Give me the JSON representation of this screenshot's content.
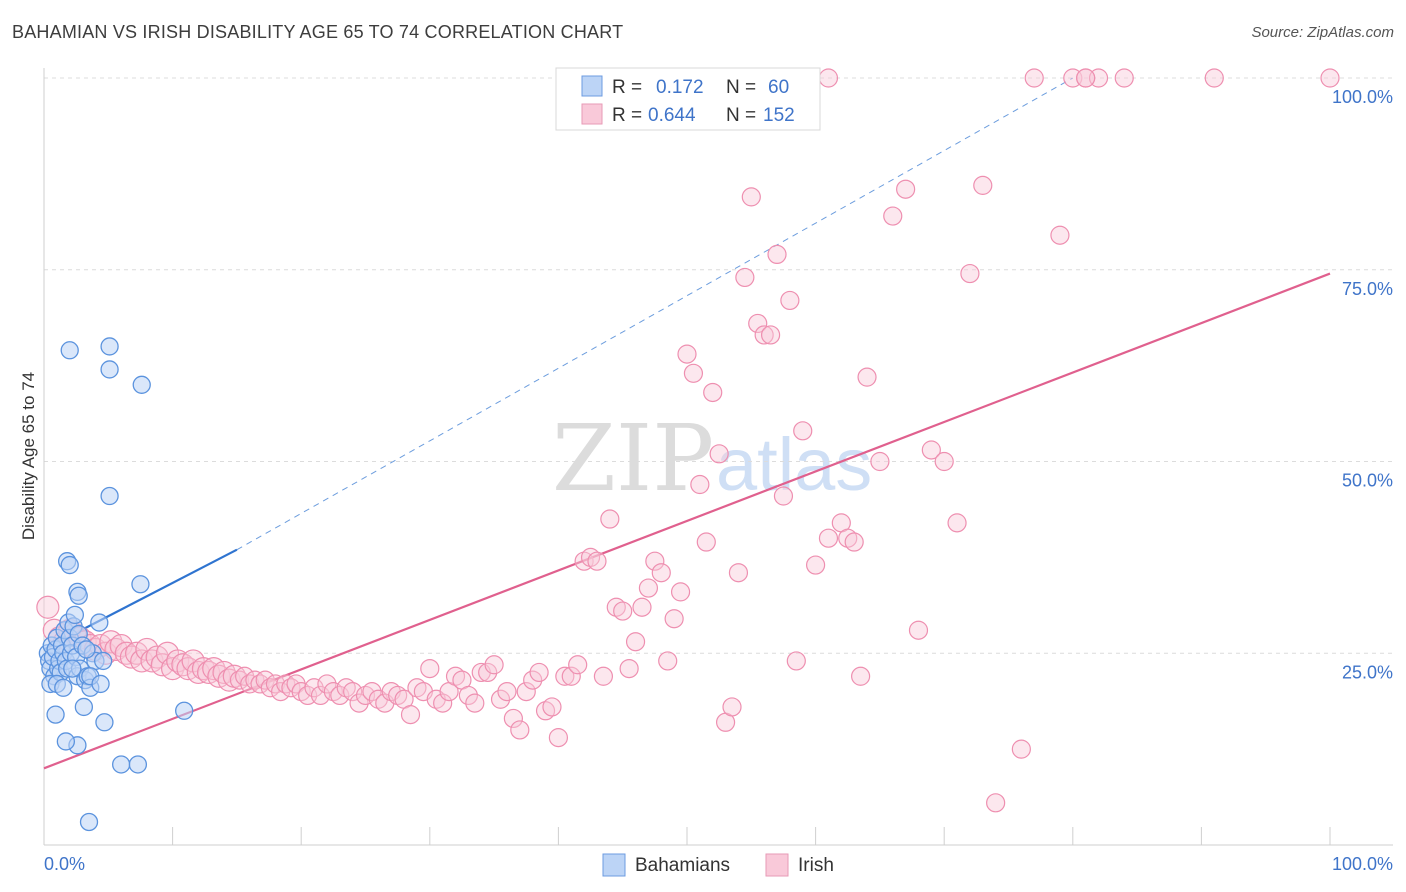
{
  "title": "BAHAMIAN VS IRISH DISABILITY AGE 65 TO 74 CORRELATION CHART",
  "source": "Source: ZipAtlas.com",
  "watermark": {
    "zip": "ZIP",
    "atlas": "atlas"
  },
  "colors": {
    "bahamian": "#5b93de",
    "irish": "#ee8fb0",
    "bahamian_line": "#2f74d0",
    "irish_line": "#e0608e",
    "tick_label": "#3f74c9"
  },
  "legend": {
    "rows": [
      {
        "r_label": "R =",
        "r_value": "0.172",
        "n_label": "N =",
        "n_value": "60"
      },
      {
        "r_label": "R =",
        "r_value": "0.644",
        "n_label": "N =",
        "n_value": "152"
      }
    ]
  },
  "bottom_legend": [
    "Bahamians",
    "Irish"
  ],
  "chart_data": {
    "type": "scatter",
    "title": "BAHAMIAN VS IRISH DISABILITY AGE 65 TO 74 CORRELATION CHART",
    "xlabel": "",
    "ylabel": "Disability Age 65 to 74",
    "xlim": [
      0,
      100
    ],
    "ylim": [
      0,
      100
    ],
    "x_tick_labels": [
      "0.0%",
      "100.0%"
    ],
    "y_ticks": [
      25,
      50,
      75,
      100
    ],
    "y_tick_labels": [
      "25.0%",
      "50.0%",
      "75.0%",
      "100.0%"
    ],
    "grid": "horizontal dashed",
    "legend_position": "top-center",
    "series": [
      {
        "name": "Bahamians",
        "R": 0.172,
        "N": 60,
        "trend": {
          "x0": 0,
          "y0": 25.5,
          "x1": 15,
          "y1": 38.5,
          "extended_to": [
            80,
            100
          ]
        },
        "points": [
          [
            0.3,
            25
          ],
          [
            0.4,
            24
          ],
          [
            0.5,
            23
          ],
          [
            0.6,
            26
          ],
          [
            0.7,
            24.5
          ],
          [
            0.8,
            22
          ],
          [
            0.9,
            25.5
          ],
          [
            1.0,
            27
          ],
          [
            1.1,
            23
          ],
          [
            1.2,
            24
          ],
          [
            0.5,
            21
          ],
          [
            1.3,
            22.5
          ],
          [
            1.4,
            26
          ],
          [
            1.5,
            25
          ],
          [
            1.6,
            28
          ],
          [
            1.7,
            24
          ],
          [
            1.8,
            23
          ],
          [
            1.9,
            29
          ],
          [
            2.0,
            27
          ],
          [
            2.1,
            25
          ],
          [
            1.0,
            21
          ],
          [
            1.5,
            20.5
          ],
          [
            2.2,
            26
          ],
          [
            2.3,
            28.5
          ],
          [
            2.4,
            30
          ],
          [
            2.5,
            24.5
          ],
          [
            2.6,
            22
          ],
          [
            2.7,
            27.5
          ],
          [
            2.8,
            23
          ],
          [
            3.0,
            26
          ],
          [
            3.2,
            21.5
          ],
          [
            3.4,
            22
          ],
          [
            3.6,
            20.5
          ],
          [
            3.8,
            25
          ],
          [
            4.0,
            24
          ],
          [
            4.3,
            29
          ],
          [
            1.8,
            37
          ],
          [
            2.0,
            36.5
          ],
          [
            2.6,
            33
          ],
          [
            2.7,
            32.5
          ],
          [
            3.3,
            25.5
          ],
          [
            3.6,
            22
          ],
          [
            4.4,
            21
          ],
          [
            4.6,
            24
          ],
          [
            4.7,
            16
          ],
          [
            3.1,
            18
          ],
          [
            2.6,
            13
          ],
          [
            1.7,
            13.5
          ],
          [
            0.9,
            17
          ],
          [
            6.0,
            10.5
          ],
          [
            7.3,
            10.5
          ],
          [
            3.5,
            3
          ],
          [
            5.1,
            45.5
          ],
          [
            2.0,
            64.5
          ],
          [
            5.1,
            65
          ],
          [
            5.1,
            62
          ],
          [
            7.6,
            60
          ],
          [
            7.5,
            34
          ],
          [
            10.9,
            17.5
          ],
          [
            2.2,
            23
          ]
        ]
      },
      {
        "name": "Irish",
        "R": 0.644,
        "N": 152,
        "trend": {
          "x0": 0,
          "y0": 10,
          "x1": 100,
          "y1": 74.5
        },
        "points": [
          [
            0.3,
            31
          ],
          [
            0.8,
            28
          ],
          [
            1.2,
            27
          ],
          [
            1.6,
            26.5
          ],
          [
            2.0,
            28
          ],
          [
            2.4,
            27.5
          ],
          [
            2.8,
            27
          ],
          [
            3.2,
            26.5
          ],
          [
            3.6,
            26
          ],
          [
            4.0,
            25.5
          ],
          [
            4.4,
            26
          ],
          [
            4.8,
            25
          ],
          [
            5.2,
            26.5
          ],
          [
            5.6,
            25.5
          ],
          [
            6.0,
            26
          ],
          [
            6.4,
            25
          ],
          [
            6.8,
            24.5
          ],
          [
            7.2,
            25
          ],
          [
            7.6,
            24
          ],
          [
            8.0,
            25.5
          ],
          [
            8.4,
            24
          ],
          [
            8.8,
            24.5
          ],
          [
            9.2,
            23.5
          ],
          [
            9.6,
            25
          ],
          [
            10.0,
            23
          ],
          [
            10.4,
            24
          ],
          [
            10.8,
            23.5
          ],
          [
            11.2,
            23
          ],
          [
            11.6,
            24
          ],
          [
            12.0,
            22.5
          ],
          [
            12.4,
            23
          ],
          [
            12.8,
            22.5
          ],
          [
            13.2,
            23
          ],
          [
            13.6,
            22
          ],
          [
            14.0,
            22.5
          ],
          [
            14.4,
            21.5
          ],
          [
            14.8,
            22
          ],
          [
            15.2,
            21.5
          ],
          [
            15.6,
            22
          ],
          [
            16.0,
            21
          ],
          [
            16.4,
            21.5
          ],
          [
            16.8,
            21
          ],
          [
            17.2,
            21.5
          ],
          [
            17.6,
            20.5
          ],
          [
            18.0,
            21
          ],
          [
            18.4,
            20
          ],
          [
            18.8,
            21
          ],
          [
            19.2,
            20.5
          ],
          [
            19.6,
            21
          ],
          [
            20.0,
            20
          ],
          [
            20.5,
            19.5
          ],
          [
            21.0,
            20.5
          ],
          [
            21.5,
            19.5
          ],
          [
            22.0,
            21
          ],
          [
            22.5,
            20
          ],
          [
            23.0,
            19.5
          ],
          [
            23.5,
            20.5
          ],
          [
            24.0,
            20
          ],
          [
            24.5,
            18.5
          ],
          [
            25.0,
            19.5
          ],
          [
            25.5,
            20
          ],
          [
            26.0,
            19
          ],
          [
            26.5,
            18.5
          ],
          [
            27.0,
            20
          ],
          [
            27.5,
            19.5
          ],
          [
            28.0,
            19
          ],
          [
            28.5,
            17
          ],
          [
            29.0,
            20.5
          ],
          [
            29.5,
            20
          ],
          [
            30.0,
            23
          ],
          [
            30.5,
            19
          ],
          [
            31.0,
            18.5
          ],
          [
            31.5,
            20
          ],
          [
            32.0,
            22
          ],
          [
            32.5,
            21.5
          ],
          [
            33.0,
            19.5
          ],
          [
            33.5,
            18.5
          ],
          [
            34.0,
            22.5
          ],
          [
            34.5,
            22.5
          ],
          [
            35.0,
            23.5
          ],
          [
            35.5,
            19
          ],
          [
            36.0,
            20
          ],
          [
            36.5,
            16.5
          ],
          [
            37.0,
            15
          ],
          [
            37.5,
            20
          ],
          [
            38.0,
            21.5
          ],
          [
            38.5,
            22.5
          ],
          [
            39.0,
            17.5
          ],
          [
            39.5,
            18
          ],
          [
            40.0,
            14
          ],
          [
            40.5,
            22
          ],
          [
            41.0,
            22
          ],
          [
            41.5,
            23.5
          ],
          [
            42.0,
            37
          ],
          [
            42.5,
            37.5
          ],
          [
            43.0,
            37
          ],
          [
            43.5,
            22
          ],
          [
            44.0,
            42.5
          ],
          [
            44.5,
            31
          ],
          [
            45.0,
            30.5
          ],
          [
            45.5,
            23
          ],
          [
            46.0,
            26.5
          ],
          [
            46.5,
            31
          ],
          [
            47.0,
            33.5
          ],
          [
            47.5,
            37
          ],
          [
            48.0,
            35.5
          ],
          [
            48.5,
            24
          ],
          [
            49.0,
            29.5
          ],
          [
            49.5,
            33
          ],
          [
            50.0,
            64
          ],
          [
            50.5,
            61.5
          ],
          [
            51.0,
            47
          ],
          [
            51.5,
            39.5
          ],
          [
            52.0,
            59
          ],
          [
            52.5,
            51
          ],
          [
            53.0,
            16
          ],
          [
            53.5,
            18
          ],
          [
            54.0,
            35.5
          ],
          [
            54.5,
            74
          ],
          [
            55.0,
            84.5
          ],
          [
            55.5,
            68
          ],
          [
            56.0,
            66.5
          ],
          [
            56.5,
            66.5
          ],
          [
            57.0,
            77
          ],
          [
            57.5,
            45.5
          ],
          [
            58.0,
            71
          ],
          [
            58.5,
            24
          ],
          [
            59.0,
            54
          ],
          [
            60.0,
            36.5
          ],
          [
            61.0,
            40
          ],
          [
            62.0,
            42
          ],
          [
            62.5,
            40
          ],
          [
            63.0,
            39.5
          ],
          [
            63.5,
            22
          ],
          [
            64.0,
            61
          ],
          [
            65.0,
            50
          ],
          [
            66.0,
            82
          ],
          [
            67.0,
            85.5
          ],
          [
            68.0,
            28
          ],
          [
            69.0,
            51.5
          ],
          [
            70.0,
            50
          ],
          [
            71.0,
            42
          ],
          [
            72.0,
            74.5
          ],
          [
            73.0,
            86
          ],
          [
            74.0,
            5.5
          ],
          [
            76.0,
            12.5
          ],
          [
            77.0,
            100
          ],
          [
            79.0,
            79.5
          ],
          [
            80.0,
            100
          ],
          [
            81.0,
            100
          ],
          [
            82.0,
            100
          ],
          [
            84.0,
            100
          ],
          [
            91.0,
            100
          ],
          [
            100.0,
            100
          ],
          [
            61.0,
            100
          ],
          [
            81.0,
            100
          ]
        ]
      }
    ]
  }
}
